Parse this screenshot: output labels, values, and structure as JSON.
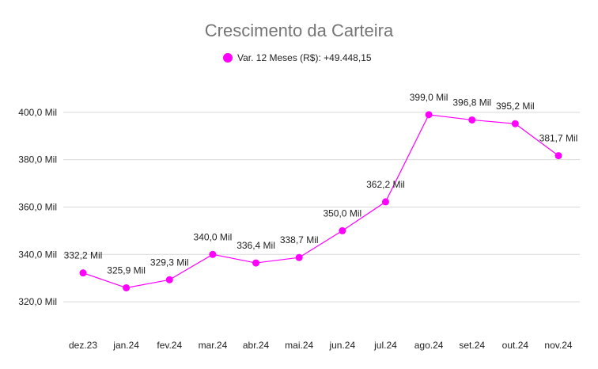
{
  "chart_data": {
    "type": "line",
    "title": "Crescimento da Carteira",
    "categories": [
      "dez.23",
      "jan.24",
      "fev.24",
      "mar.24",
      "abr.24",
      "mai.24",
      "jun.24",
      "jul.24",
      "ago.24",
      "set.24",
      "out.24",
      "nov.24"
    ],
    "series": [
      {
        "name": "Var. 12 Meses (R$): +49.448,15",
        "color": "#ff00ff",
        "values": [
          332.2,
          325.9,
          329.3,
          340.0,
          336.4,
          338.7,
          350.0,
          362.2,
          399.0,
          396.8,
          395.2,
          381.7
        ],
        "labels": [
          "332,2 Mil",
          "325,9 Mil",
          "329,3 Mil",
          "340,0 Mil",
          "336,4 Mil",
          "338,7 Mil",
          "350,0 Mil",
          "362,2 Mil",
          "399,0 Mil",
          "396,8 Mil",
          "395,2 Mil",
          "381,7 Mil"
        ]
      }
    ],
    "yticks": [
      {
        "value": 320,
        "label": "320,0 Mil"
      },
      {
        "value": 340,
        "label": "340,0 Mil"
      },
      {
        "value": 360,
        "label": "360,0 Mil"
      },
      {
        "value": 380,
        "label": "380,0 Mil"
      },
      {
        "value": 400,
        "label": "400,0 Mil"
      }
    ],
    "ylim": [
      307,
      414
    ],
    "xlabel": "",
    "ylabel": "",
    "grid": true,
    "legend": "top-center"
  }
}
